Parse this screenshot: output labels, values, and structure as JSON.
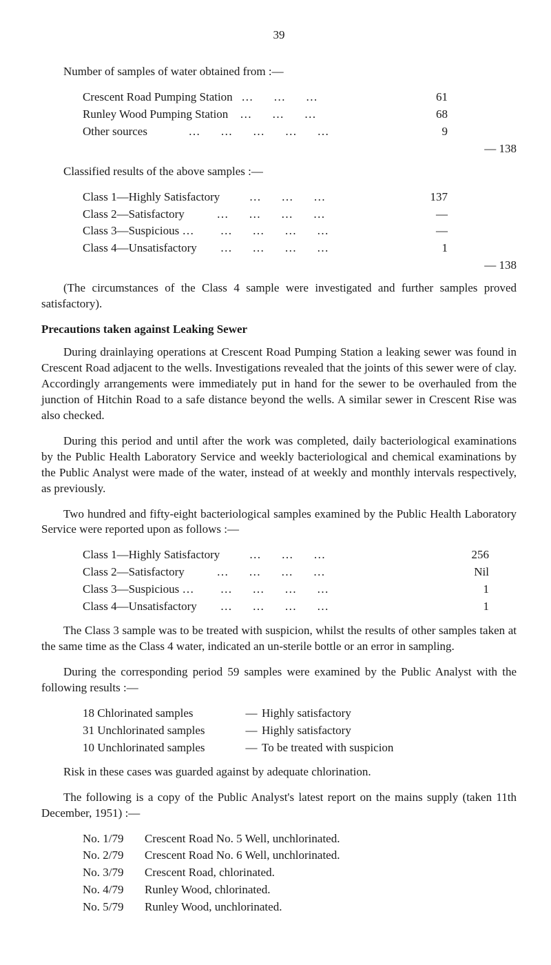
{
  "pageNumber": "39",
  "section1": {
    "intro": "Number of samples of water obtained from :—",
    "rows": [
      {
        "label": "Crescent Road Pumping Station   …       …       …",
        "value": "61"
      },
      {
        "label": "Runley Wood Pumping Station    …       …       …",
        "value": "68"
      },
      {
        "label": "Other sources              …       …       …       …       …",
        "value": "9"
      }
    ],
    "total": "— 138"
  },
  "section2": {
    "intro": "Classified results of the above samples :—",
    "rows": [
      {
        "label": "Class 1—Highly Satisfactory          …       …       …",
        "value": "137"
      },
      {
        "label": "Class 2—Satisfactory           …       …       …       …",
        "value": "—"
      },
      {
        "label": "Class 3—Suspicious …         …       …       …       …",
        "value": "—"
      },
      {
        "label": "Class 4—Unsatisfactory        …       …       …       …",
        "value": "1"
      }
    ],
    "total": "— 138"
  },
  "para1": "(The circumstances of the Class 4 sample were investigated and further samples proved satisfactory).",
  "heading1": "Precautions taken against Leaking Sewer",
  "para2": "During drainlaying operations at Crescent Road Pumping Station a leaking sewer was found in Crescent Road adjacent to the wells.  Investiga­tions revealed that the joints of this sewer were of clay.  Accordingly arrangements were immediately put in hand for the sewer to be overhauled from the junction of Hitchin Road to a safe distance beyond the wells.  A similar sewer in Crescent Rise was also checked.",
  "para3": "During this period and until after the work was completed, daily bac­teriological examinations by the Public Health Laboratory Service and weekly bacteriological and chemical examinations by the Public Analyst were made of the water, instead of at weekly and monthly intervals respectively, as previously.",
  "para4": "Two hundred and fifty-eight bacteriological samples examined by the Public Health Laboratory Service were reported upon as follows :—",
  "bact": {
    "rows": [
      {
        "label": "Class 1—Highly Satisfactory          …       …       …",
        "value": "256"
      },
      {
        "label": "Class 2—Satisfactory           …       …       …       …",
        "value": "Nil"
      },
      {
        "label": "Class 3—Suspicious …         …       …       …       …",
        "value": "1"
      },
      {
        "label": "Class 4—Unsatisfactory        …       …       …       …",
        "value": "1"
      }
    ]
  },
  "para5": "The Class 3 sample was to be treated with suspicion, whilst the results of other samples taken at the same time as the Class 4 water, indicated an un-sterile bottle or an error in sampling.",
  "para6": "During the corresponding period 59 samples were examined by the Public Analyst with the following results :—",
  "analyst": {
    "rows": [
      {
        "left": "18 Chlorinated samples",
        "dash": "—",
        "right": "Highly satisfactory"
      },
      {
        "left": "31 Unchlorinated samples",
        "dash": "—",
        "right": "Highly satisfactory"
      },
      {
        "left": "10 Unchlorinated samples",
        "dash": "—",
        "right": "To be treated with suspicion"
      }
    ]
  },
  "para7": "Risk in these cases was guarded against by adequate chlorination.",
  "para8": "The following is a copy of the Public Analyst's latest report on the mains supply (taken 11th December, 1951) :—",
  "wells": {
    "rows": [
      {
        "no": "No. 1/79",
        "desc": "Crescent Road No. 5 Well, unchlorinated."
      },
      {
        "no": "No. 2/79",
        "desc": "Crescent Road No. 6 Well, unchlorinated."
      },
      {
        "no": "No. 3/79",
        "desc": "Crescent Road, chlorinated."
      },
      {
        "no": "No. 4/79",
        "desc": "Runley Wood, chlorinated."
      },
      {
        "no": "No. 5/79",
        "desc": "Runley Wood, unchlorinated."
      }
    ]
  }
}
